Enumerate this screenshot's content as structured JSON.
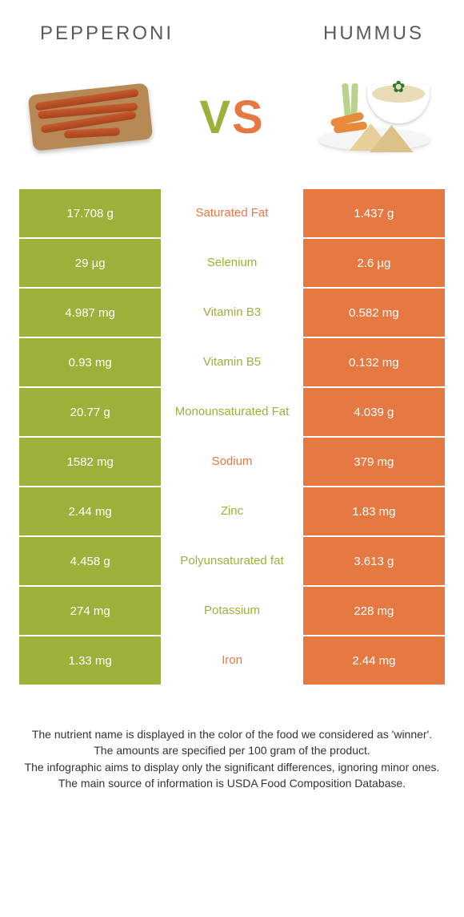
{
  "header": {
    "left_title": "Pepperoni",
    "right_title": "Hummus"
  },
  "vs": {
    "v": "V",
    "s": "S"
  },
  "colors": {
    "left": "#9db13a",
    "right": "#e67842",
    "background": "#ffffff"
  },
  "table": {
    "rows": [
      {
        "left": "17.708 g",
        "label": "Saturated Fat",
        "right": "1.437 g",
        "winner": "right"
      },
      {
        "left": "29 µg",
        "label": "Selenium",
        "right": "2.6 µg",
        "winner": "left"
      },
      {
        "left": "4.987 mg",
        "label": "Vitamin B3",
        "right": "0.582 mg",
        "winner": "left"
      },
      {
        "left": "0.93 mg",
        "label": "Vitamin B5",
        "right": "0.132 mg",
        "winner": "left"
      },
      {
        "left": "20.77 g",
        "label": "Monounsaturated Fat",
        "right": "4.039 g",
        "winner": "left"
      },
      {
        "left": "1582 mg",
        "label": "Sodium",
        "right": "379 mg",
        "winner": "right"
      },
      {
        "left": "2.44 mg",
        "label": "Zinc",
        "right": "1.83 mg",
        "winner": "left"
      },
      {
        "left": "4.458 g",
        "label": "Polyunsaturated fat",
        "right": "3.613 g",
        "winner": "left"
      },
      {
        "left": "274 mg",
        "label": "Potassium",
        "right": "228 mg",
        "winner": "left"
      },
      {
        "left": "1.33 mg",
        "label": "Iron",
        "right": "2.44 mg",
        "winner": "right"
      }
    ]
  },
  "footer": {
    "line1": "The nutrient name is displayed in the color of the food we considered as 'winner'.",
    "line2": "The amounts are specified per 100 gram of the product.",
    "line3": "The infographic aims to display only the significant differences, ignoring minor ones.",
    "line4": "The main source of information is USDA Food Composition Database."
  }
}
